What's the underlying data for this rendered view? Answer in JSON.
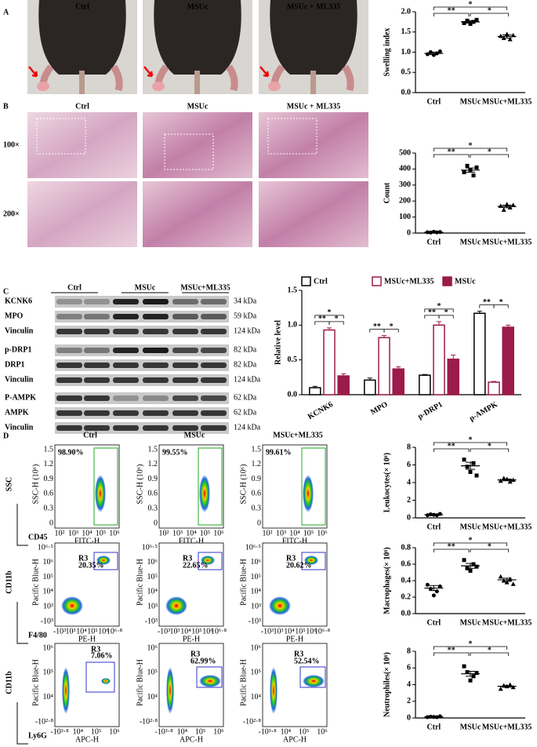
{
  "panel_labels": [
    "A",
    "B",
    "C",
    "D"
  ],
  "photos": {
    "columns": [
      "Ctrl",
      "MSUc",
      "MSUc + ML335"
    ]
  },
  "histology": {
    "columns": [
      "Ctrl",
      "MSUc",
      "MSUc + ML335"
    ],
    "rows": [
      "100×",
      "200×"
    ]
  },
  "blot": {
    "lanes": [
      "Ctrl",
      "MSUc",
      "MSUc+ML335"
    ],
    "rows": [
      {
        "protein": "KCNK6",
        "size": "34 kDa"
      },
      {
        "protein": "MPO",
        "size": "59 kDa"
      },
      {
        "protein": "Vinculin",
        "size": "124 kDa"
      },
      {
        "protein": "p-DRP1",
        "size": "82 kDa"
      },
      {
        "protein": "DRP1",
        "size": "82 kDa"
      },
      {
        "protein": "Vinculin",
        "size": "124 kDa"
      },
      {
        "protein": "P-AMPK",
        "size": "62 kDa"
      },
      {
        "protein": "AMPK",
        "size": "62 kDa"
      },
      {
        "protein": "Vinculin",
        "size": "124 kDa"
      }
    ]
  },
  "flow": {
    "columns": [
      "Ctrl",
      "MSUc",
      "MSUc+ML335"
    ],
    "gate_name": "R3",
    "rows": [
      {
        "y_label": "SSC",
        "x_label": "CD45",
        "y_axis": "SSC-H (10⁶)",
        "x_axis": "FITC-H",
        "gates": [
          "98.90%",
          "99.55%",
          "99.61%"
        ],
        "x_ticks": [
          "10²",
          "10³",
          "10⁴",
          "10⁵",
          "10⁶"
        ],
        "y_ticks": [
          "0",
          "0.3",
          "0.6",
          "0.9",
          "1.2",
          "1.5"
        ]
      },
      {
        "y_label": "CD11b",
        "x_label": "F4/80",
        "y_axis": "Pacific Blue-H",
        "x_axis": "PE-H",
        "gates": [
          "20.35%",
          "22.65%",
          "20.62%"
        ],
        "x_ticks": [
          "-10³",
          "10³",
          "10⁴",
          "10⁵",
          "10⁶",
          "10⁶·⁸"
        ],
        "y_ticks": [
          "-10³",
          "10³",
          "10⁴",
          "10⁵",
          "10⁶",
          "10⁶·⁵"
        ]
      },
      {
        "y_label": "CD11b",
        "x_label": "Ly6G",
        "y_axis": "Pacific Blue-H",
        "x_axis": "APC-H",
        "gates": [
          "7.06%",
          "62.99%",
          "52.54%"
        ],
        "x_ticks": [
          "-10³·⁸",
          "10⁴",
          "10⁵",
          "10⁶"
        ],
        "y_ticks": [
          "-10²·⁸",
          "10⁴",
          "10⁵",
          "10⁶"
        ]
      }
    ]
  },
  "chart_data": [
    {
      "type": "dot",
      "y_label": "Swelling index",
      "categories": [
        "Ctrl",
        "MSUc",
        "MSUc+ML335"
      ],
      "points": [
        [
          0.95,
          1.0,
          0.93,
          0.97,
          1.02
        ],
        [
          1.72,
          1.78,
          1.7,
          1.75,
          1.8
        ],
        [
          1.4,
          1.35,
          1.45,
          1.32,
          1.42
        ]
      ],
      "means": [
        0.97,
        1.75,
        1.39
      ],
      "errors": [
        0.03,
        0.03,
        0.04
      ],
      "markers": [
        "circle",
        "square",
        "triangle"
      ],
      "color": "#000000",
      "ylim": [
        0,
        2
      ],
      "yticks": [
        {
          "value": 0,
          "label": "0.0"
        },
        {
          "value": 0.5,
          "label": "0.5"
        },
        {
          "value": 1,
          "label": "1.0"
        },
        {
          "value": 1.5,
          "label": "1.5"
        },
        {
          "value": 2,
          "label": "2.0"
        }
      ],
      "significance": [
        "**",
        "*",
        "*"
      ]
    },
    {
      "type": "dot",
      "y_label": "Count",
      "categories": [
        "Ctrl",
        "MSUc",
        "MSUc+ML335"
      ],
      "points": [
        [
          5,
          3,
          8,
          4,
          6
        ],
        [
          380,
          420,
          395,
          360,
          410
        ],
        [
          170,
          145,
          180,
          160,
          175
        ]
      ],
      "means": [
        5,
        393,
        166
      ],
      "errors": [
        1,
        13,
        8
      ],
      "markers": [
        "circle",
        "square",
        "triangle"
      ],
      "color": "#000000",
      "ylim": [
        0,
        500
      ],
      "yticks": [
        0,
        100,
        200,
        300,
        400,
        500
      ],
      "significance": [
        "**",
        "*",
        "*"
      ]
    },
    {
      "type": "bar",
      "y_label": "Relative level",
      "categories": [
        "KCNK6",
        "MPO",
        "p-DRP1",
        "p-AMPK"
      ],
      "series": [
        {
          "name": "Ctrl",
          "fill": "#ffffff",
          "edge": "#000000",
          "values": [
            0.1,
            0.21,
            0.28,
            1.17
          ],
          "errors": [
            0.02,
            0.03,
            0.01,
            0.03
          ]
        },
        {
          "name": "MSUc+ML335",
          "fill": "#ffffff",
          "edge": "#9b1b4a",
          "values": [
            0.93,
            0.82,
            1.0,
            0.18
          ],
          "errors": [
            0.03,
            0.03,
            0.05,
            0.01
          ]
        },
        {
          "name": "MSUc",
          "fill": "#9b1b4a",
          "edge": "#9b1b4a",
          "values": [
            0.27,
            0.37,
            0.51,
            0.97
          ],
          "errors": [
            0.03,
            0.03,
            0.06,
            0.03
          ]
        }
      ],
      "ylim": [
        0,
        1.5
      ],
      "yticks": [
        {
          "value": 0,
          "label": "0.0"
        },
        {
          "value": 0.5,
          "label": "0.5"
        },
        {
          "value": 1,
          "label": "1.0"
        },
        {
          "value": 1.5,
          "label": "1.5"
        }
      ],
      "significance": [
        [
          "**",
          "*",
          "*"
        ],
        [
          "**",
          "*"
        ],
        [
          "**",
          "*",
          "*"
        ],
        [
          "**",
          "*"
        ]
      ]
    },
    {
      "type": "dot",
      "y_label": "Leukocytes(× 10⁶)",
      "categories": [
        "Ctrl",
        "MSUc",
        "MSUc+ML335"
      ],
      "points": [
        [
          0.3,
          0.4,
          0.35,
          0.3,
          0.45
        ],
        [
          6.6,
          5.8,
          5.2,
          6.2,
          4.8
        ],
        [
          4.2,
          4.5,
          4.4,
          4.1,
          4.3
        ]
      ],
      "means": [
        0.36,
        5.9,
        4.3
      ],
      "errors": [
        0.03,
        0.4,
        0.1
      ],
      "markers": [
        "circle",
        "square",
        "triangle"
      ],
      "color": "#000000",
      "ylim": [
        0,
        8
      ],
      "yticks": [
        0,
        2,
        4,
        6,
        8
      ],
      "significance": [
        "**",
        "*",
        "*"
      ]
    },
    {
      "type": "dot",
      "y_label": "Macrophages(× 10⁶)",
      "categories": [
        "Ctrl",
        "MSUc",
        "MSUc+ML335"
      ],
      "points": [
        [
          0.35,
          0.3,
          0.22,
          0.27,
          0.33
        ],
        [
          0.65,
          0.55,
          0.52,
          0.6,
          0.57
        ],
        [
          0.45,
          0.4,
          0.38,
          0.42,
          0.36
        ]
      ],
      "means": [
        0.31,
        0.58,
        0.41
      ],
      "errors": [
        0.03,
        0.03,
        0.02
      ],
      "markers": [
        "circle",
        "square",
        "triangle"
      ],
      "color": "#000000",
      "ylim": [
        0,
        0.8
      ],
      "yticks": [
        {
          "value": 0,
          "label": "0.0"
        },
        {
          "value": 0.2,
          "label": "0.2"
        },
        {
          "value": 0.4,
          "label": "0.4"
        },
        {
          "value": 0.6,
          "label": "0.6"
        },
        {
          "value": 0.8,
          "label": "0.8"
        }
      ],
      "significance": [
        "**",
        "*",
        "*"
      ]
    },
    {
      "type": "dot",
      "y_label": "Neutrophiles(× 10⁶)",
      "categories": [
        "Ctrl",
        "MSUc",
        "MSUc+ML335"
      ],
      "points": [
        [
          0.1,
          0.15,
          0.12,
          0.1,
          0.2
        ],
        [
          6.2,
          5.5,
          4.5,
          5.0,
          5.4
        ],
        [
          3.5,
          3.9,
          3.8,
          4.0,
          3.7
        ]
      ],
      "means": [
        0.13,
        5.3,
        3.8
      ],
      "errors": [
        0.02,
        0.3,
        0.1
      ],
      "markers": [
        "circle",
        "square",
        "triangle"
      ],
      "color": "#000000",
      "ylim": [
        0,
        8
      ],
      "yticks": [
        0,
        2,
        4,
        6,
        8
      ],
      "significance": [
        "**",
        "*",
        "*"
      ]
    }
  ]
}
